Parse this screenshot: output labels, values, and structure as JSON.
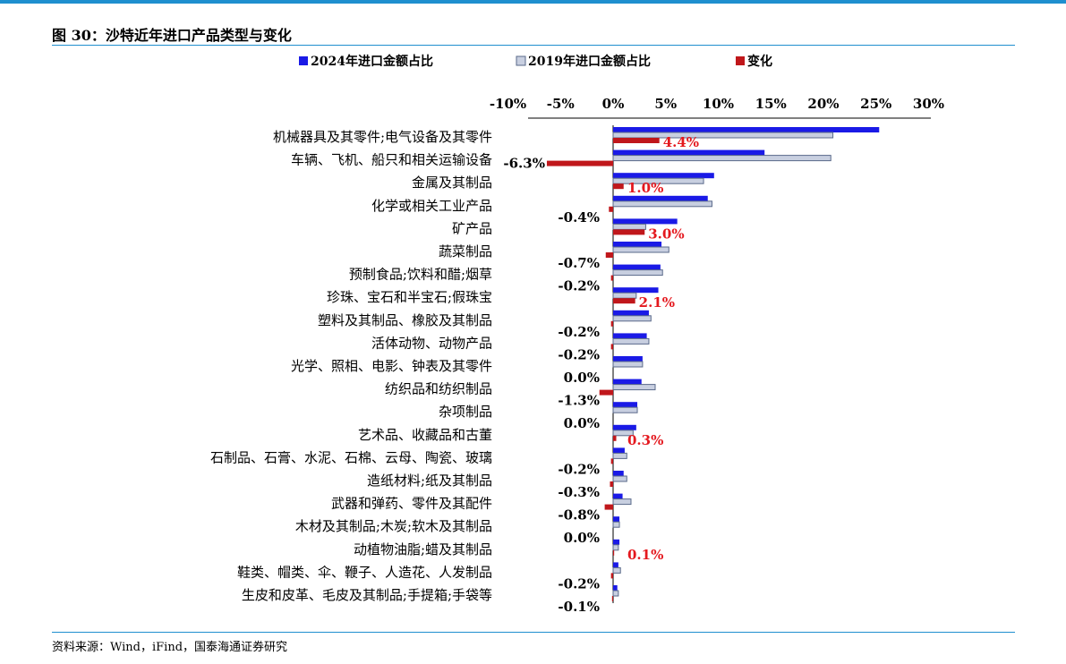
{
  "figure": {
    "title": "图 30：沙特近年进口产品类型与变化",
    "source": "资料来源：Wind，iFind，国泰海通证券研究"
  },
  "chart_data": {
    "type": "bar",
    "orientation": "horizontal",
    "xlim": [
      -10,
      30
    ],
    "ticks": [
      "-10%",
      "-5%",
      "0%",
      "5%",
      "10%",
      "15%",
      "20%",
      "25%",
      "30%"
    ],
    "legend_position": "top",
    "categories": [
      "机械器具及其零件;电气设备及其零件",
      "车辆、飞机、船只和相关运输设备",
      "金属及其制品",
      "化学或相关工业产品",
      "矿产品",
      "蔬菜制品",
      "预制食品;饮料和醋;烟草",
      "珍珠、宝石和半宝石;假珠宝",
      "塑料及其制品、橡胶及其制品",
      "活体动物、动物产品",
      "光学、照相、电影、钟表及其零件",
      "纺织品和纺织制品",
      "杂项制品",
      "艺术品、收藏品和古董",
      "石制品、石膏、水泥、石棉、云母、陶瓷、玻璃",
      "造纸材料;纸及其制品",
      "武器和弹药、零件及其配件",
      "木材及其制品;木炭;软木及其制品",
      "动植物油脂;蜡及其制品",
      "鞋类、帽类、伞、鞭子、人造花、人发制品",
      "生皮和皮革、毛皮及其制品;手提箱;手袋等"
    ],
    "series": [
      {
        "name": "2024年进口金额占比",
        "color": "#1a1ae6",
        "values": [
          25.3,
          14.4,
          9.6,
          9.0,
          6.1,
          4.6,
          4.5,
          4.3,
          3.4,
          3.2,
          2.8,
          2.7,
          2.3,
          2.2,
          1.1,
          1.0,
          0.9,
          0.6,
          0.6,
          0.5,
          0.4
        ]
      },
      {
        "name": "2019年进口金额占比",
        "color": "#c8cfe0",
        "values": [
          20.9,
          20.7,
          8.6,
          9.4,
          3.1,
          5.3,
          4.7,
          2.2,
          3.6,
          3.4,
          2.8,
          4.0,
          2.3,
          1.9,
          1.3,
          1.3,
          1.7,
          0.6,
          0.5,
          0.7,
          0.5
        ]
      },
      {
        "name": "变化",
        "color": "#c0171b",
        "values": [
          4.4,
          -6.3,
          1.0,
          -0.4,
          3.0,
          -0.7,
          -0.2,
          2.1,
          -0.2,
          -0.2,
          0.0,
          -1.3,
          0.0,
          0.3,
          -0.2,
          -0.3,
          -0.8,
          0.0,
          0.1,
          -0.2,
          -0.1
        ],
        "labels": [
          "4.4%",
          "-6.3%",
          "1.0%",
          "-0.4%",
          "3.0%",
          "-0.7%",
          "-0.2%",
          "2.1%",
          "-0.2%",
          "-0.2%",
          "0.0%",
          "-1.3%",
          "0.0%",
          "0.3%",
          "-0.2%",
          "-0.3%",
          "-0.8%",
          "0.0%",
          "0.1%",
          "-0.2%",
          "-0.1%"
        ]
      }
    ]
  }
}
